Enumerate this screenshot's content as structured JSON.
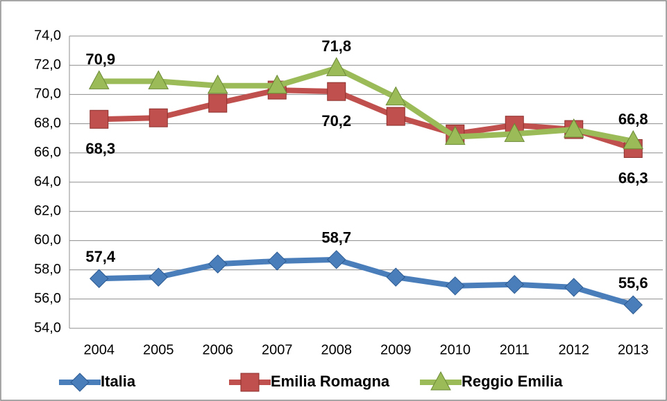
{
  "chart_data": {
    "type": "line",
    "categories": [
      "2004",
      "2005",
      "2006",
      "2007",
      "2008",
      "2009",
      "2010",
      "2011",
      "2012",
      "2013"
    ],
    "series": [
      {
        "name": "Italia",
        "color": "#4a7ebb",
        "marker": "diamond",
        "values": [
          57.4,
          57.5,
          58.4,
          58.6,
          58.7,
          57.5,
          56.9,
          57.0,
          56.8,
          55.6
        ],
        "value_labels": [
          "57,4",
          null,
          null,
          null,
          "58,7",
          null,
          null,
          null,
          null,
          "55,6"
        ]
      },
      {
        "name": "Emilia Romagna",
        "color": "#c0504d",
        "marker": "square",
        "values": [
          68.3,
          68.4,
          69.4,
          70.3,
          70.2,
          68.5,
          67.3,
          67.9,
          67.6,
          66.3
        ],
        "value_labels": [
          "68,3",
          null,
          null,
          null,
          "70,2",
          null,
          null,
          null,
          null,
          "66,3"
        ]
      },
      {
        "name": "Reggio Emilia",
        "color": "#9bbb59",
        "marker": "triangle",
        "values": [
          70.9,
          70.9,
          70.6,
          70.6,
          71.8,
          69.8,
          67.1,
          67.3,
          67.6,
          66.8
        ],
        "value_labels": [
          "70,9",
          null,
          null,
          null,
          "71,8",
          null,
          null,
          null,
          null,
          "66,8"
        ]
      }
    ],
    "ylim": [
      54,
      74
    ],
    "yticks": [
      {
        "value": 54,
        "label": "54,0"
      },
      {
        "value": 56,
        "label": "56,0"
      },
      {
        "value": 58,
        "label": "58,0"
      },
      {
        "value": 60,
        "label": "60,0"
      },
      {
        "value": 62,
        "label": "62,0"
      },
      {
        "value": 64,
        "label": "64,0"
      },
      {
        "value": 66,
        "label": "66,0"
      },
      {
        "value": 68,
        "label": "68,0"
      },
      {
        "value": 70,
        "label": "70,0"
      },
      {
        "value": 72,
        "label": "72,0"
      },
      {
        "value": 74,
        "label": "74,0"
      }
    ],
    "grid": true,
    "legend": "bottom"
  }
}
